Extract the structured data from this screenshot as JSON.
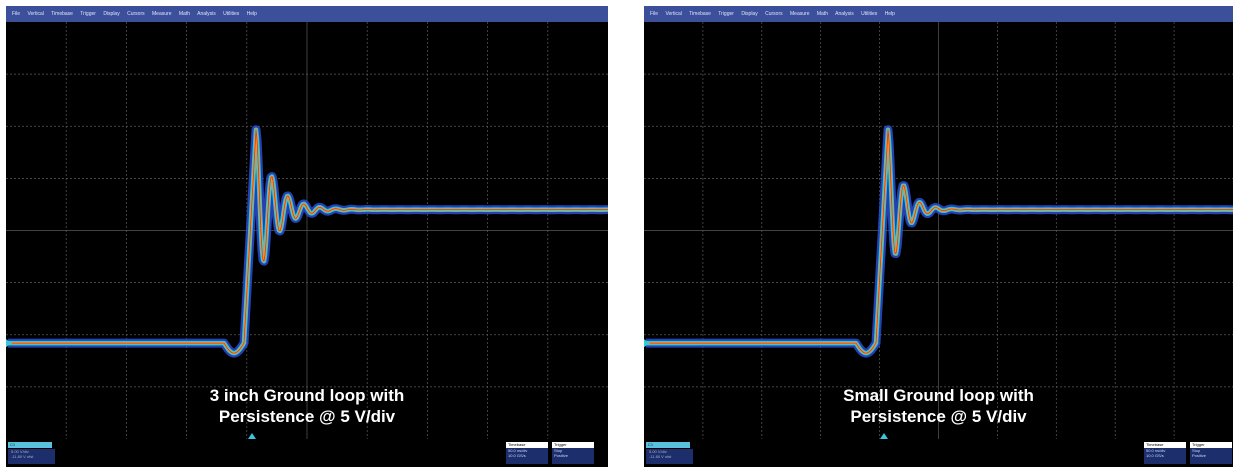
{
  "panels": [
    {
      "id": "left",
      "menu": [
        "File",
        "Vertical",
        "Timebase",
        "Trigger",
        "Display",
        "Cursors",
        "Measure",
        "Math",
        "Analysis",
        "Utilities",
        "Help"
      ],
      "caption_line1": "3 inch Ground loop with",
      "caption_line2": "Persistence @ 5 V/div",
      "channel": {
        "tag": "C1",
        "line1": "5.00 V/div",
        "line2": "-11.80 V ofst"
      },
      "timebase": {
        "header": "Timebase",
        "line1": "50.0 ns/div",
        "line2": "10.0 GS/s"
      },
      "trigger": {
        "header": "Trigger",
        "line1": "Stop",
        "line2": "Positive"
      }
    },
    {
      "id": "right",
      "menu": [
        "File",
        "Vertical",
        "Timebase",
        "Trigger",
        "Display",
        "Cursors",
        "Measure",
        "Math",
        "Analysis",
        "Utilities",
        "Help"
      ],
      "caption_line1": "Small Ground loop with",
      "caption_line2": "Persistence @ 5 V/div",
      "channel": {
        "tag": "C1",
        "line1": "5.00 V/div",
        "line2": "-11.80 V ofst"
      },
      "timebase": {
        "header": "Timebase",
        "line1": "50.0 ns/div",
        "line2": "10.0 GS/s"
      },
      "trigger": {
        "header": "Trigger",
        "line1": "Stop",
        "line2": "Positive"
      }
    }
  ],
  "colors": {
    "grid": "#5a5a5a",
    "trace_outer": "#2a4cd0",
    "trace_mid": "#38c6d8",
    "trace_core": "#f0a020",
    "trace_hot": "#e03020"
  },
  "waveform": {
    "low_level": 0.77,
    "high_level": 0.45,
    "damping_left": 0.055,
    "damping_right": 0.075
  }
}
